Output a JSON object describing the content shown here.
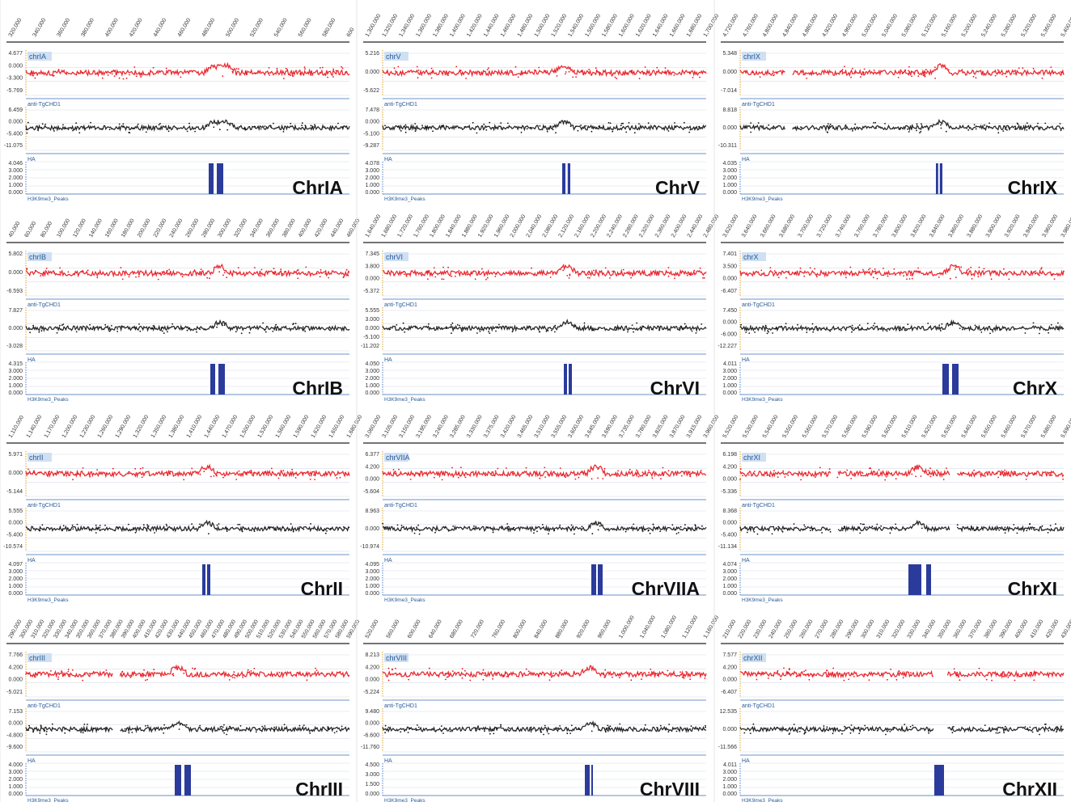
{
  "figure": {
    "track_labels": {
      "signal1": "anti-TgCHD1",
      "signal2": "HA",
      "peaks": "H3K9me3_Peaks"
    },
    "colors": {
      "signal1": "#e8141c",
      "signal2": "#111111",
      "peaks": "#2b3b9c",
      "axis": "#3b6fb6",
      "grid": "#d6dde8"
    }
  },
  "chart_data": [
    {
      "type": "line",
      "chromosome": "ChrIA",
      "track_name": "chrIA",
      "x_ticks": [
        "320,000",
        "340,000",
        "360,000",
        "380,000",
        "400,000",
        "420,000",
        "440,000",
        "460,000",
        "480,000",
        "500,000",
        "520,000",
        "540,000",
        "560,000",
        "580,000",
        "600"
      ],
      "tracks": [
        {
          "name": "anti-TgCHD1",
          "ticks": [
            "4.677",
            "0.000",
            "-3.300",
            "-5.769"
          ]
        },
        {
          "name": "HA",
          "ticks": [
            "6.459",
            "0.000",
            "-5.400",
            "-11.075"
          ]
        },
        {
          "name": "H3K9me3_Peaks",
          "ticks": [
            "4.046",
            "3.000",
            "2.000",
            "1.000",
            "0.000"
          ]
        }
      ],
      "enrichment_x": [
        0.58,
        0.62
      ],
      "gaps": [],
      "peaks": [
        [
          0.565,
          0.58
        ],
        [
          0.59,
          0.61
        ]
      ]
    },
    {
      "type": "line",
      "chromosome": "ChrV",
      "track_name": "chrV",
      "x_ticks": [
        "1,300,000",
        "1,320,000",
        "1,340,000",
        "1,360,000",
        "1,380,000",
        "1,400,000",
        "1,420,000",
        "1,440,000",
        "1,460,000",
        "1,480,000",
        "1,500,000",
        "1,520,000",
        "1,540,000",
        "1,560,000",
        "1,580,000",
        "1,600,000",
        "1,620,000",
        "1,640,000",
        "1,660,000",
        "1,680,000",
        "1,700,000"
      ],
      "tracks": [
        {
          "name": "anti-TgCHD1",
          "ticks": [
            "5.216",
            "0.000",
            "-5.622"
          ]
        },
        {
          "name": "HA",
          "ticks": [
            "7.478",
            "0.000",
            "-5.100",
            "-9.287"
          ]
        },
        {
          "name": "H3K9me3_Peaks",
          "ticks": [
            "4.078",
            "3.000",
            "2.000",
            "1.000",
            "0.000"
          ]
        }
      ],
      "enrichment_x": [
        0.56
      ],
      "gaps": [],
      "peaks": [
        [
          0.555,
          0.565
        ],
        [
          0.572,
          0.58
        ]
      ]
    },
    {
      "type": "line",
      "chromosome": "ChrIX",
      "track_name": "chrIX",
      "x_ticks": [
        "4,720,000",
        "4,760,000",
        "4,800,000",
        "4,840,000",
        "4,880,000",
        "4,920,000",
        "4,960,000",
        "5,000,000",
        "5,040,000",
        "5,080,000",
        "5,120,000",
        "5,160,000",
        "5,200,000",
        "5,240,000",
        "5,280,000",
        "5,320,000",
        "5,360,000",
        "5,400,000"
      ],
      "tracks": [
        {
          "name": "anti-TgCHD1",
          "ticks": [
            "5.348",
            "0.000",
            "-7.014"
          ]
        },
        {
          "name": "HA",
          "ticks": [
            "8.818",
            "0.000",
            "-10.311"
          ]
        },
        {
          "name": "H3K9me3_Peaks",
          "ticks": [
            "4.035",
            "3.000",
            "2.000",
            "1.000",
            "0.000"
          ]
        }
      ],
      "enrichment_x": [
        0.62
      ],
      "gaps": [
        [
          0.14,
          0.16
        ]
      ],
      "peaks": [
        [
          0.605,
          0.612
        ],
        [
          0.617,
          0.625
        ]
      ]
    },
    {
      "type": "line",
      "chromosome": "ChrIB",
      "track_name": "chrIB",
      "x_ticks": [
        "40,000",
        "60,000",
        "80,000",
        "100,000",
        "120,000",
        "140,000",
        "160,000",
        "180,000",
        "200,000",
        "220,000",
        "240,000",
        "260,000",
        "280,000",
        "300,000",
        "320,000",
        "340,000",
        "360,000",
        "380,000",
        "400,000",
        "420,000",
        "440,000",
        "460,000"
      ],
      "tracks": [
        {
          "name": "anti-TgCHD1",
          "ticks": [
            "5.802",
            "0.000",
            "-6.593"
          ]
        },
        {
          "name": "HA",
          "ticks": [
            "7.827",
            "0.000",
            "-3.028"
          ]
        },
        {
          "name": "H3K9me3_Peaks",
          "ticks": [
            "4.315",
            "3.000",
            "2.000",
            "1.000",
            "0.000"
          ]
        }
      ],
      "enrichment_x": [
        0.6
      ],
      "gaps": [],
      "peaks": [
        [
          0.57,
          0.585
        ],
        [
          0.595,
          0.615
        ]
      ]
    },
    {
      "type": "line",
      "chromosome": "ChrVI",
      "track_name": "chrVI",
      "x_ticks": [
        "1,640,000",
        "1,680,000",
        "1,720,000",
        "1,760,000",
        "1,800,000",
        "1,840,000",
        "1,880,000",
        "1,920,000",
        "1,960,000",
        "2,000,000",
        "2,040,000",
        "2,080,000",
        "2,120,000",
        "2,160,000",
        "2,200,000",
        "2,240,000",
        "2,280,000",
        "2,320,000",
        "2,360,000",
        "2,400,000",
        "2,440,000",
        "2,480,000"
      ],
      "tracks": [
        {
          "name": "anti-TgCHD1",
          "ticks": [
            "7.345",
            "3.800",
            "0.000",
            "-5.372"
          ]
        },
        {
          "name": "HA",
          "ticks": [
            "5.555",
            "3.000",
            "0.000",
            "-5.100",
            "-11.202"
          ]
        },
        {
          "name": "H3K9me3_Peaks",
          "ticks": [
            "4.050",
            "3.000",
            "2.000",
            "1.000",
            "0.000"
          ]
        }
      ],
      "enrichment_x": [
        0.57
      ],
      "gaps": [],
      "peaks": [
        [
          0.56,
          0.57
        ],
        [
          0.575,
          0.585
        ]
      ]
    },
    {
      "type": "line",
      "chromosome": "ChrX",
      "track_name": "chrX",
      "x_ticks": [
        "3,620,000",
        "3,640,000",
        "3,660,000",
        "3,680,000",
        "3,700,000",
        "3,720,000",
        "3,740,000",
        "3,760,000",
        "3,780,000",
        "3,800,000",
        "3,820,000",
        "3,840,000",
        "3,860,000",
        "3,880,000",
        "3,900,000",
        "3,920,000",
        "3,940,000",
        "3,960,000",
        "3,980,000"
      ],
      "tracks": [
        {
          "name": "anti-TgCHD1",
          "ticks": [
            "7.401",
            "3.500",
            "0.000",
            "-6.407"
          ]
        },
        {
          "name": "HA",
          "ticks": [
            "7.450",
            "0.000",
            "-6.000",
            "-12.227"
          ]
        },
        {
          "name": "H3K9me3_Peaks",
          "ticks": [
            "4.011",
            "3.000",
            "2.000",
            "1.000",
            "0.000"
          ]
        }
      ],
      "enrichment_x": [
        0.66
      ],
      "gaps": [],
      "peaks": [
        [
          0.625,
          0.645
        ],
        [
          0.655,
          0.675
        ]
      ]
    },
    {
      "type": "line",
      "chromosome": "ChrII",
      "track_name": "chrII",
      "x_ticks": [
        "1,110,000",
        "1,140,000",
        "1,170,000",
        "1,200,000",
        "1,230,000",
        "1,260,000",
        "1,290,000",
        "1,320,000",
        "1,350,000",
        "1,380,000",
        "1,410,000",
        "1,440,000",
        "1,470,000",
        "1,500,000",
        "1,530,000",
        "1,560,000",
        "1,590,000",
        "1,620,000",
        "1,650,000",
        "1,680,000"
      ],
      "tracks": [
        {
          "name": "anti-TgCHD1",
          "ticks": [
            "5.971",
            "0.000",
            "-5.144"
          ]
        },
        {
          "name": "HA",
          "ticks": [
            "5.555",
            "0.000",
            "-5.400",
            "-10.574"
          ]
        },
        {
          "name": "H3K9me3_Peaks",
          "ticks": [
            "4.097",
            "3.000",
            "2.000",
            "1.000",
            "0.000"
          ]
        }
      ],
      "enrichment_x": [
        0.56
      ],
      "gaps": [],
      "peaks": [
        [
          0.545,
          0.555
        ],
        [
          0.56,
          0.57
        ]
      ]
    },
    {
      "type": "line",
      "chromosome": "ChrVIIA",
      "track_name": "chrVIIA",
      "x_ticks": [
        "3,060,000",
        "3,105,000",
        "3,150,000",
        "3,195,000",
        "3,240,000",
        "3,285,000",
        "3,330,000",
        "3,375,000",
        "3,420,000",
        "3,465,000",
        "3,510,000",
        "3,555,000",
        "3,600,000",
        "3,645,000",
        "3,690,000",
        "3,735,000",
        "3,780,000",
        "3,825,000",
        "3,870,000",
        "3,915,000",
        "3,960,000"
      ],
      "tracks": [
        {
          "name": "anti-TgCHD1",
          "ticks": [
            "6.377",
            "4.200",
            "0.000",
            "-5.604"
          ]
        },
        {
          "name": "HA",
          "ticks": [
            "8.963",
            "0.000",
            "-10.974"
          ]
        },
        {
          "name": "H3K9me3_Peaks",
          "ticks": [
            "4.095",
            "3.000",
            "2.000",
            "1.000",
            "0.000"
          ]
        }
      ],
      "enrichment_x": [
        0.66
      ],
      "gaps": [],
      "peaks": [
        [
          0.645,
          0.66
        ],
        [
          0.665,
          0.68
        ]
      ]
    },
    {
      "type": "line",
      "chromosome": "ChrXI",
      "track_name": "chrXI",
      "x_ticks": [
        "5,520,000",
        "5,530,000",
        "5,540,000",
        "5,550,000",
        "5,560,000",
        "5,570,000",
        "5,580,000",
        "5,590,000",
        "5,600,000",
        "5,610,000",
        "5,620,000",
        "5,630,000",
        "5,640,000",
        "5,650,000",
        "5,660,000",
        "5,670,000",
        "5,680,000",
        "5,690,000"
      ],
      "tracks": [
        {
          "name": "anti-TgCHD1",
          "ticks": [
            "6.198",
            "4.200",
            "0.000",
            "-5.336"
          ]
        },
        {
          "name": "HA",
          "ticks": [
            "8.368",
            "0.000",
            "-5.400",
            "-11.134"
          ]
        },
        {
          "name": "H3K9me3_Peaks",
          "ticks": [
            "4.074",
            "3.000",
            "2.000",
            "1.000",
            "0.000"
          ]
        }
      ],
      "enrichment_x": [
        0.55
      ],
      "gaps": [
        [
          0.28,
          0.3
        ],
        [
          0.65,
          0.67
        ]
      ],
      "peaks": [
        [
          0.52,
          0.56
        ],
        [
          0.575,
          0.59
        ]
      ]
    },
    {
      "type": "line",
      "chromosome": "ChrIII",
      "track_name": "chrIII",
      "x_ticks": [
        "290,000",
        "300,000",
        "310,000",
        "320,000",
        "330,000",
        "340,000",
        "350,000",
        "360,000",
        "370,000",
        "380,000",
        "390,000",
        "400,000",
        "410,000",
        "420,000",
        "430,000",
        "440,000",
        "450,000",
        "460,000",
        "470,000",
        "480,000",
        "490,000",
        "500,000",
        "510,000",
        "520,000",
        "530,000",
        "540,000",
        "550,000",
        "560,000",
        "570,000",
        "580,000",
        "590,000"
      ],
      "tracks": [
        {
          "name": "anti-TgCHD1",
          "ticks": [
            "7.766",
            "4.200",
            "0.000",
            "-5.021"
          ]
        },
        {
          "name": "HA",
          "ticks": [
            "7.153",
            "0.000",
            "-4.800",
            "-9.600"
          ]
        },
        {
          "name": "H3K9me3_Peaks",
          "ticks": [
            "4.000",
            "3.000",
            "2.000",
            "1.000",
            "0.000"
          ]
        }
      ],
      "enrichment_x": [
        0.47
      ],
      "gaps": [
        [
          0.27,
          0.29
        ]
      ],
      "peaks": [
        [
          0.46,
          0.48
        ],
        [
          0.49,
          0.51
        ]
      ]
    },
    {
      "type": "line",
      "chromosome": "ChrVIII",
      "track_name": "chrVIII",
      "x_ticks": [
        "520,000",
        "560,000",
        "600,000",
        "640,000",
        "680,000",
        "720,000",
        "760,000",
        "800,000",
        "840,000",
        "880,000",
        "920,000",
        "960,000",
        "1,000,000",
        "1,040,000",
        "1,080,000",
        "1,120,000",
        "1,160,000"
      ],
      "tracks": [
        {
          "name": "anti-TgCHD1",
          "ticks": [
            "8.213",
            "4.200",
            "0.000",
            "-5.224"
          ]
        },
        {
          "name": "HA",
          "ticks": [
            "9.480",
            "0.000",
            "-6.600",
            "-11.760"
          ]
        },
        {
          "name": "H3K9me3_Peaks",
          "ticks": [
            "4.500",
            "3.000",
            "1.500",
            "0.000"
          ]
        }
      ],
      "enrichment_x": [
        0.64
      ],
      "gaps": [],
      "peaks": [
        [
          0.625,
          0.64
        ],
        [
          0.645,
          0.65
        ]
      ]
    },
    {
      "type": "line",
      "chromosome": "ChrXII",
      "track_name": "chrXII",
      "x_ticks": [
        "210,000",
        "220,000",
        "230,000",
        "240,000",
        "250,000",
        "260,000",
        "270,000",
        "280,000",
        "290,000",
        "300,000",
        "310,000",
        "320,000",
        "330,000",
        "340,000",
        "350,000",
        "360,000",
        "370,000",
        "380,000",
        "390,000",
        "400,000",
        "410,000",
        "420,000",
        "430,000"
      ],
      "tracks": [
        {
          "name": "anti-TgCHD1",
          "ticks": [
            "7.577",
            "4.200",
            "0.000",
            "-6.407"
          ]
        },
        {
          "name": "HA",
          "ticks": [
            "12.535",
            "0.000",
            "-11.566"
          ]
        },
        {
          "name": "H3K9me3_Peaks",
          "ticks": [
            "4.011",
            "3.000",
            "2.000",
            "1.000",
            "0.000"
          ]
        }
      ],
      "enrichment_x": [],
      "gaps": [
        [
          0.6,
          0.64
        ]
      ],
      "peaks": [
        [
          0.6,
          0.63
        ]
      ]
    }
  ]
}
